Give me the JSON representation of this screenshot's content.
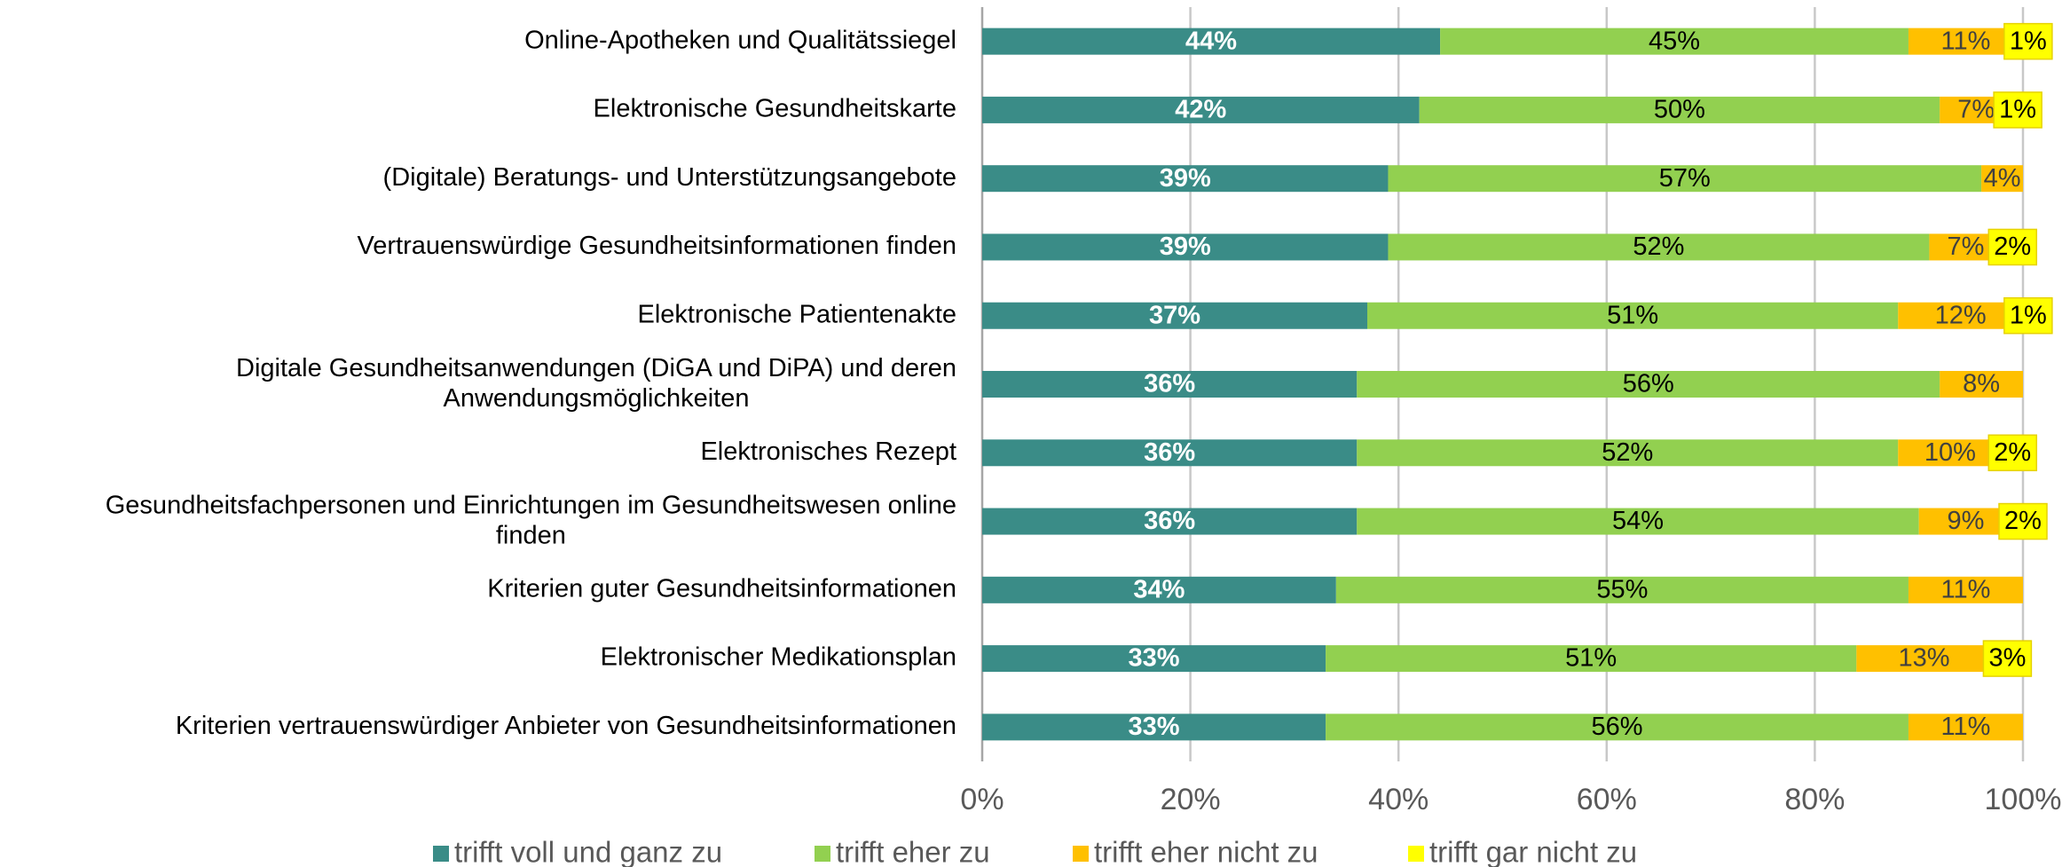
{
  "chart_data": {
    "type": "stacked-bar-horizontal",
    "categories": [
      "Online-Apotheken und Qualitätssiegel",
      "Elektronische Gesundheitskarte",
      "(Digitale) Beratungs- und Unterstützungsangebote",
      "Vertrauenswürdige Gesundheitsinformationen finden",
      "Elektronische Patientenakte",
      "Digitale Gesundheitsanwendungen (DiGA und DiPA) und deren\nAnwendungsmöglichkeiten",
      "Elektronisches Rezept",
      "Gesundheitsfachpersonen und Einrichtungen im Gesundheitswesen online\nfinden",
      "Kriterien guter Gesundheitsinformationen",
      "Elektronischer Medikationsplan",
      "Kriterien vertrauenswürdiger Anbieter von Gesundheitsinformationen"
    ],
    "series": [
      {
        "name": "trifft voll und ganz zu",
        "color": "#3a8c87",
        "values": [
          44,
          42,
          39,
          39,
          37,
          36,
          36,
          36,
          34,
          33,
          33
        ],
        "value_labels": [
          "44%",
          "42%",
          "39%",
          "39%",
          "37%",
          "36%",
          "36%",
          "36%",
          "34%",
          "33%",
          "33%"
        ]
      },
      {
        "name": "trifft eher zu",
        "color": "#92d050",
        "values": [
          45,
          50,
          57,
          52,
          51,
          56,
          52,
          54,
          55,
          51,
          56
        ],
        "value_labels": [
          "45%",
          "50%",
          "57%",
          "52%",
          "51%",
          "56%",
          "52%",
          "54%",
          "55%",
          "51%",
          "56%"
        ]
      },
      {
        "name": "trifft eher nicht zu",
        "color": "#ffc000",
        "values": [
          11,
          7,
          4,
          7,
          12,
          8,
          10,
          9,
          11,
          13,
          11
        ],
        "value_labels": [
          "11%",
          "7%",
          "4%",
          "7%",
          "12%",
          "8%",
          "10%",
          "9%",
          "11%",
          "13%",
          "11%"
        ]
      },
      {
        "name": "trifft gar nicht zu",
        "color": "#ffff00",
        "values": [
          1,
          1,
          null,
          2,
          1,
          null,
          2,
          2,
          null,
          3,
          null
        ],
        "value_labels": [
          "1%",
          "1%",
          null,
          "2%",
          "1%",
          null,
          "2%",
          "2%",
          null,
          "3%",
          null
        ]
      }
    ],
    "xlim": [
      0,
      100
    ],
    "xticks": [
      {
        "value": 0,
        "label": "0%"
      },
      {
        "value": 20,
        "label": "20%"
      },
      {
        "value": 40,
        "label": "40%"
      },
      {
        "value": 60,
        "label": "60%"
      },
      {
        "value": 80,
        "label": "80%"
      },
      {
        "value": 100,
        "label": "100%"
      }
    ],
    "grid": true,
    "legend": "bottom"
  }
}
